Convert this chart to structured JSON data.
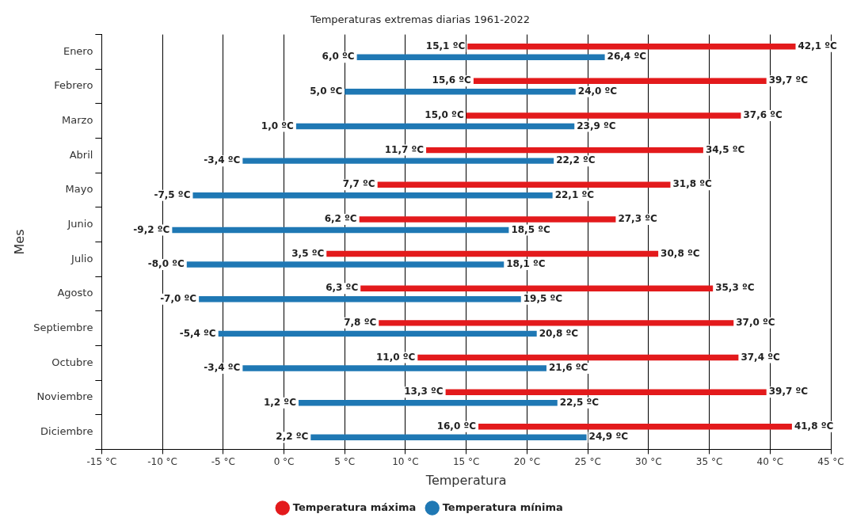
{
  "chart_data": {
    "type": "bar",
    "orientation": "horizontal",
    "title": "Temperaturas extremas diarias 1961-2022",
    "xlabel": "Temperatura",
    "ylabel": "Mes",
    "categories": [
      "Enero",
      "Febrero",
      "Marzo",
      "Abril",
      "Mayo",
      "Junio",
      "Julio",
      "Agosto",
      "Septiembre",
      "Octubre",
      "Noviembre",
      "Diciembre"
    ],
    "series": [
      {
        "name": "Temperatura máxima",
        "color": "#e31a1c",
        "base": [
          15.1,
          15.6,
          15.0,
          11.7,
          7.7,
          6.2,
          3.5,
          6.3,
          7.8,
          11.0,
          13.3,
          16.0
        ],
        "values": [
          27.0,
          24.1,
          22.6,
          22.8,
          24.1,
          21.1,
          27.3,
          29.0,
          29.2,
          26.4,
          26.4,
          25.8
        ],
        "value_labels": [
          [
            "15,1 ºC",
            "42,1 ºC"
          ],
          [
            "15,6 ºC",
            "39,7 ºC"
          ],
          [
            "15,0 ºC",
            "37,6 ºC"
          ],
          [
            "11,7 ºC",
            "34,5 ºC"
          ],
          [
            "7,7 ºC",
            "31,8 ºC"
          ],
          [
            "6,2 ºC",
            "27,3 ºC"
          ],
          [
            "3,5 ºC",
            "30,8 ºC"
          ],
          [
            "6,3 ºC",
            "35,3 ºC"
          ],
          [
            "7,8 ºC",
            "37,0 ºC"
          ],
          [
            "11,0 ºC",
            "37,4 ºC"
          ],
          [
            "13,3 ºC",
            "39,7 ºC"
          ],
          [
            "16,0 ºC",
            "41,8 ºC"
          ]
        ]
      },
      {
        "name": "Temperatura mínima",
        "color": "#1f78b4",
        "base": [
          6.0,
          5.0,
          1.0,
          -3.4,
          -7.5,
          -9.2,
          -8.0,
          -7.0,
          -5.4,
          -3.4,
          1.2,
          2.2
        ],
        "values": [
          20.4,
          19.0,
          22.9,
          25.6,
          29.6,
          27.7,
          26.1,
          26.5,
          26.2,
          25.0,
          21.3,
          22.7
        ],
        "value_labels": [
          [
            "6,0 ºC",
            "26,4 ºC"
          ],
          [
            "5,0 ºC",
            "24,0 ºC"
          ],
          [
            "1,0 ºC",
            "23,9 ºC"
          ],
          [
            "-3,4 ºC",
            "22,2 ºC"
          ],
          [
            "-7,5 ºC",
            "22,1 ºC"
          ],
          [
            "-9,2 ºC",
            "18,5 ºC"
          ],
          [
            "-8,0 ºC",
            "18,1 ºC"
          ],
          [
            "-7,0 ºC",
            "19,5 ºC"
          ],
          [
            "-5,4 ºC",
            "20,8 ºC"
          ],
          [
            "-3,4 ºC",
            "21,6 ºC"
          ],
          [
            "1,2 ºC",
            "22,5 ºC"
          ],
          [
            "2,2 ºC",
            "24,9 ºC"
          ]
        ]
      }
    ],
    "xlim": [
      -15,
      45
    ],
    "xticks": [
      {
        "value": -15,
        "label": "-15 °C"
      },
      {
        "value": -10,
        "label": "-10 °C"
      },
      {
        "value": -5,
        "label": "-5 °C"
      },
      {
        "value": 0,
        "label": "0 °C"
      },
      {
        "value": 5,
        "label": "5 °C"
      },
      {
        "value": 10,
        "label": "10 °C"
      },
      {
        "value": 15,
        "label": "15 °C"
      },
      {
        "value": 20,
        "label": "20 °C"
      },
      {
        "value": 25,
        "label": "25 °C"
      },
      {
        "value": 30,
        "label": "30 °C"
      },
      {
        "value": 35,
        "label": "35 °C"
      },
      {
        "value": 40,
        "label": "40 °C"
      },
      {
        "value": 45,
        "label": "45 °C"
      }
    ],
    "grid": "x",
    "legend": "bottom",
    "marker": "circle"
  }
}
